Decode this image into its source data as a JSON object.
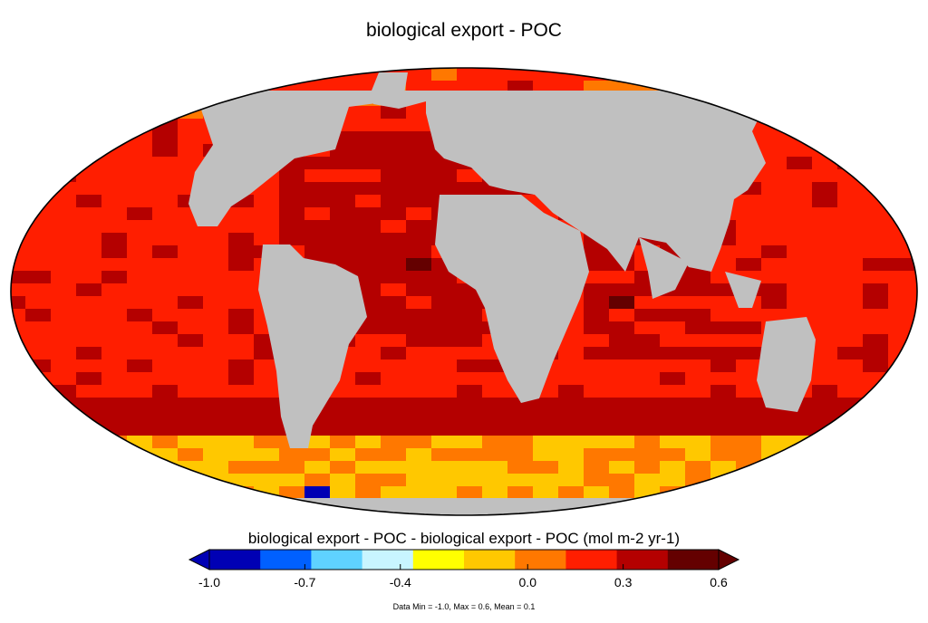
{
  "title": "biological export - POC",
  "colorbar": {
    "label": "biological export - POC - biological export - POC (mol m-2 yr-1)",
    "min": -1.0,
    "max": 0.6,
    "ticks": [
      "-1.0",
      "-0.7",
      "-0.4",
      "0.0",
      "0.3",
      "0.6"
    ],
    "tick_values": [
      -1.0,
      -0.7,
      -0.4,
      0.0,
      0.3,
      0.6
    ],
    "colors": [
      "#0000b4",
      "#0060ff",
      "#5fd2ff",
      "#c8f5ff",
      "#ffff00",
      "#ffc800",
      "#ff7800",
      "#ff1e00",
      "#b40000",
      "#640000"
    ]
  },
  "stats_text": "Data Min = -1.0, Max = 0.6, Mean = 0.1",
  "land_color": "#c0c0c0",
  "projection": "Robinson (global)",
  "field_values": {
    "min": -1.0,
    "max": 0.6,
    "mean": 0.1
  }
}
